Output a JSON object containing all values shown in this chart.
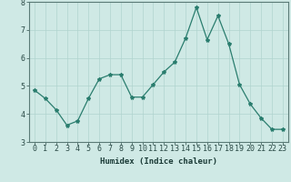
{
  "x": [
    0,
    1,
    2,
    3,
    4,
    5,
    6,
    7,
    8,
    9,
    10,
    11,
    12,
    13,
    14,
    15,
    16,
    17,
    18,
    19,
    20,
    21,
    22,
    23
  ],
  "y": [
    4.85,
    4.55,
    4.15,
    3.6,
    3.75,
    4.55,
    5.25,
    5.4,
    5.4,
    4.6,
    4.6,
    5.05,
    5.5,
    5.85,
    6.7,
    7.8,
    6.65,
    7.5,
    6.5,
    5.05,
    4.35,
    3.85,
    3.45,
    3.45
  ],
  "xlabel": "Humidex (Indice chaleur)",
  "ylim": [
    3,
    8
  ],
  "xlim": [
    -0.5,
    23.5
  ],
  "yticks": [
    3,
    4,
    5,
    6,
    7,
    8
  ],
  "xticks": [
    0,
    1,
    2,
    3,
    4,
    5,
    6,
    7,
    8,
    9,
    10,
    11,
    12,
    13,
    14,
    15,
    16,
    17,
    18,
    19,
    20,
    21,
    22,
    23
  ],
  "line_color": "#2a7d6e",
  "marker": "*",
  "marker_size": 3.0,
  "line_width": 0.9,
  "bg_color": "#cfe9e5",
  "grid_color": "#b0d4cf",
  "spine_color": "#5a7a76",
  "tick_color": "#2a4a46",
  "label_color": "#1a3a36",
  "label_fontsize": 6.5,
  "tick_fontsize": 6.0,
  "xlabel_fontweight": "bold"
}
